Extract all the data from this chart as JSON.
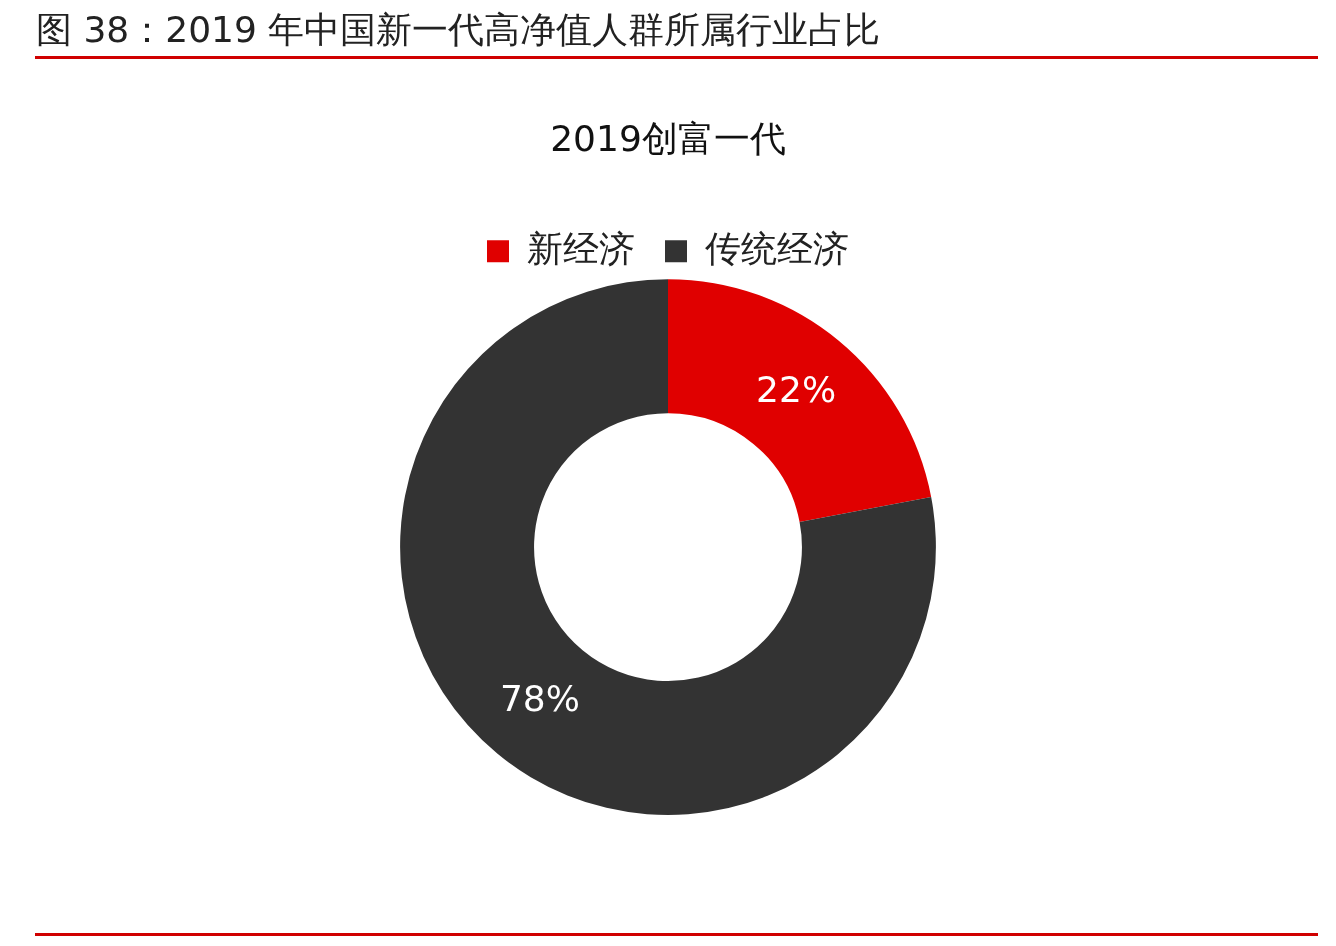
{
  "chart_data": {
    "type": "donut",
    "title": "图 38：2019 年中国新一代高净值人群所属行业占比",
    "subtitle": "2019创富一代",
    "categories": [
      "新经济",
      "传统经济"
    ],
    "values": [
      22,
      78
    ],
    "colors": [
      "#e00000",
      "#333333"
    ],
    "value_labels": [
      "22%",
      "78%"
    ],
    "legend": "top"
  }
}
